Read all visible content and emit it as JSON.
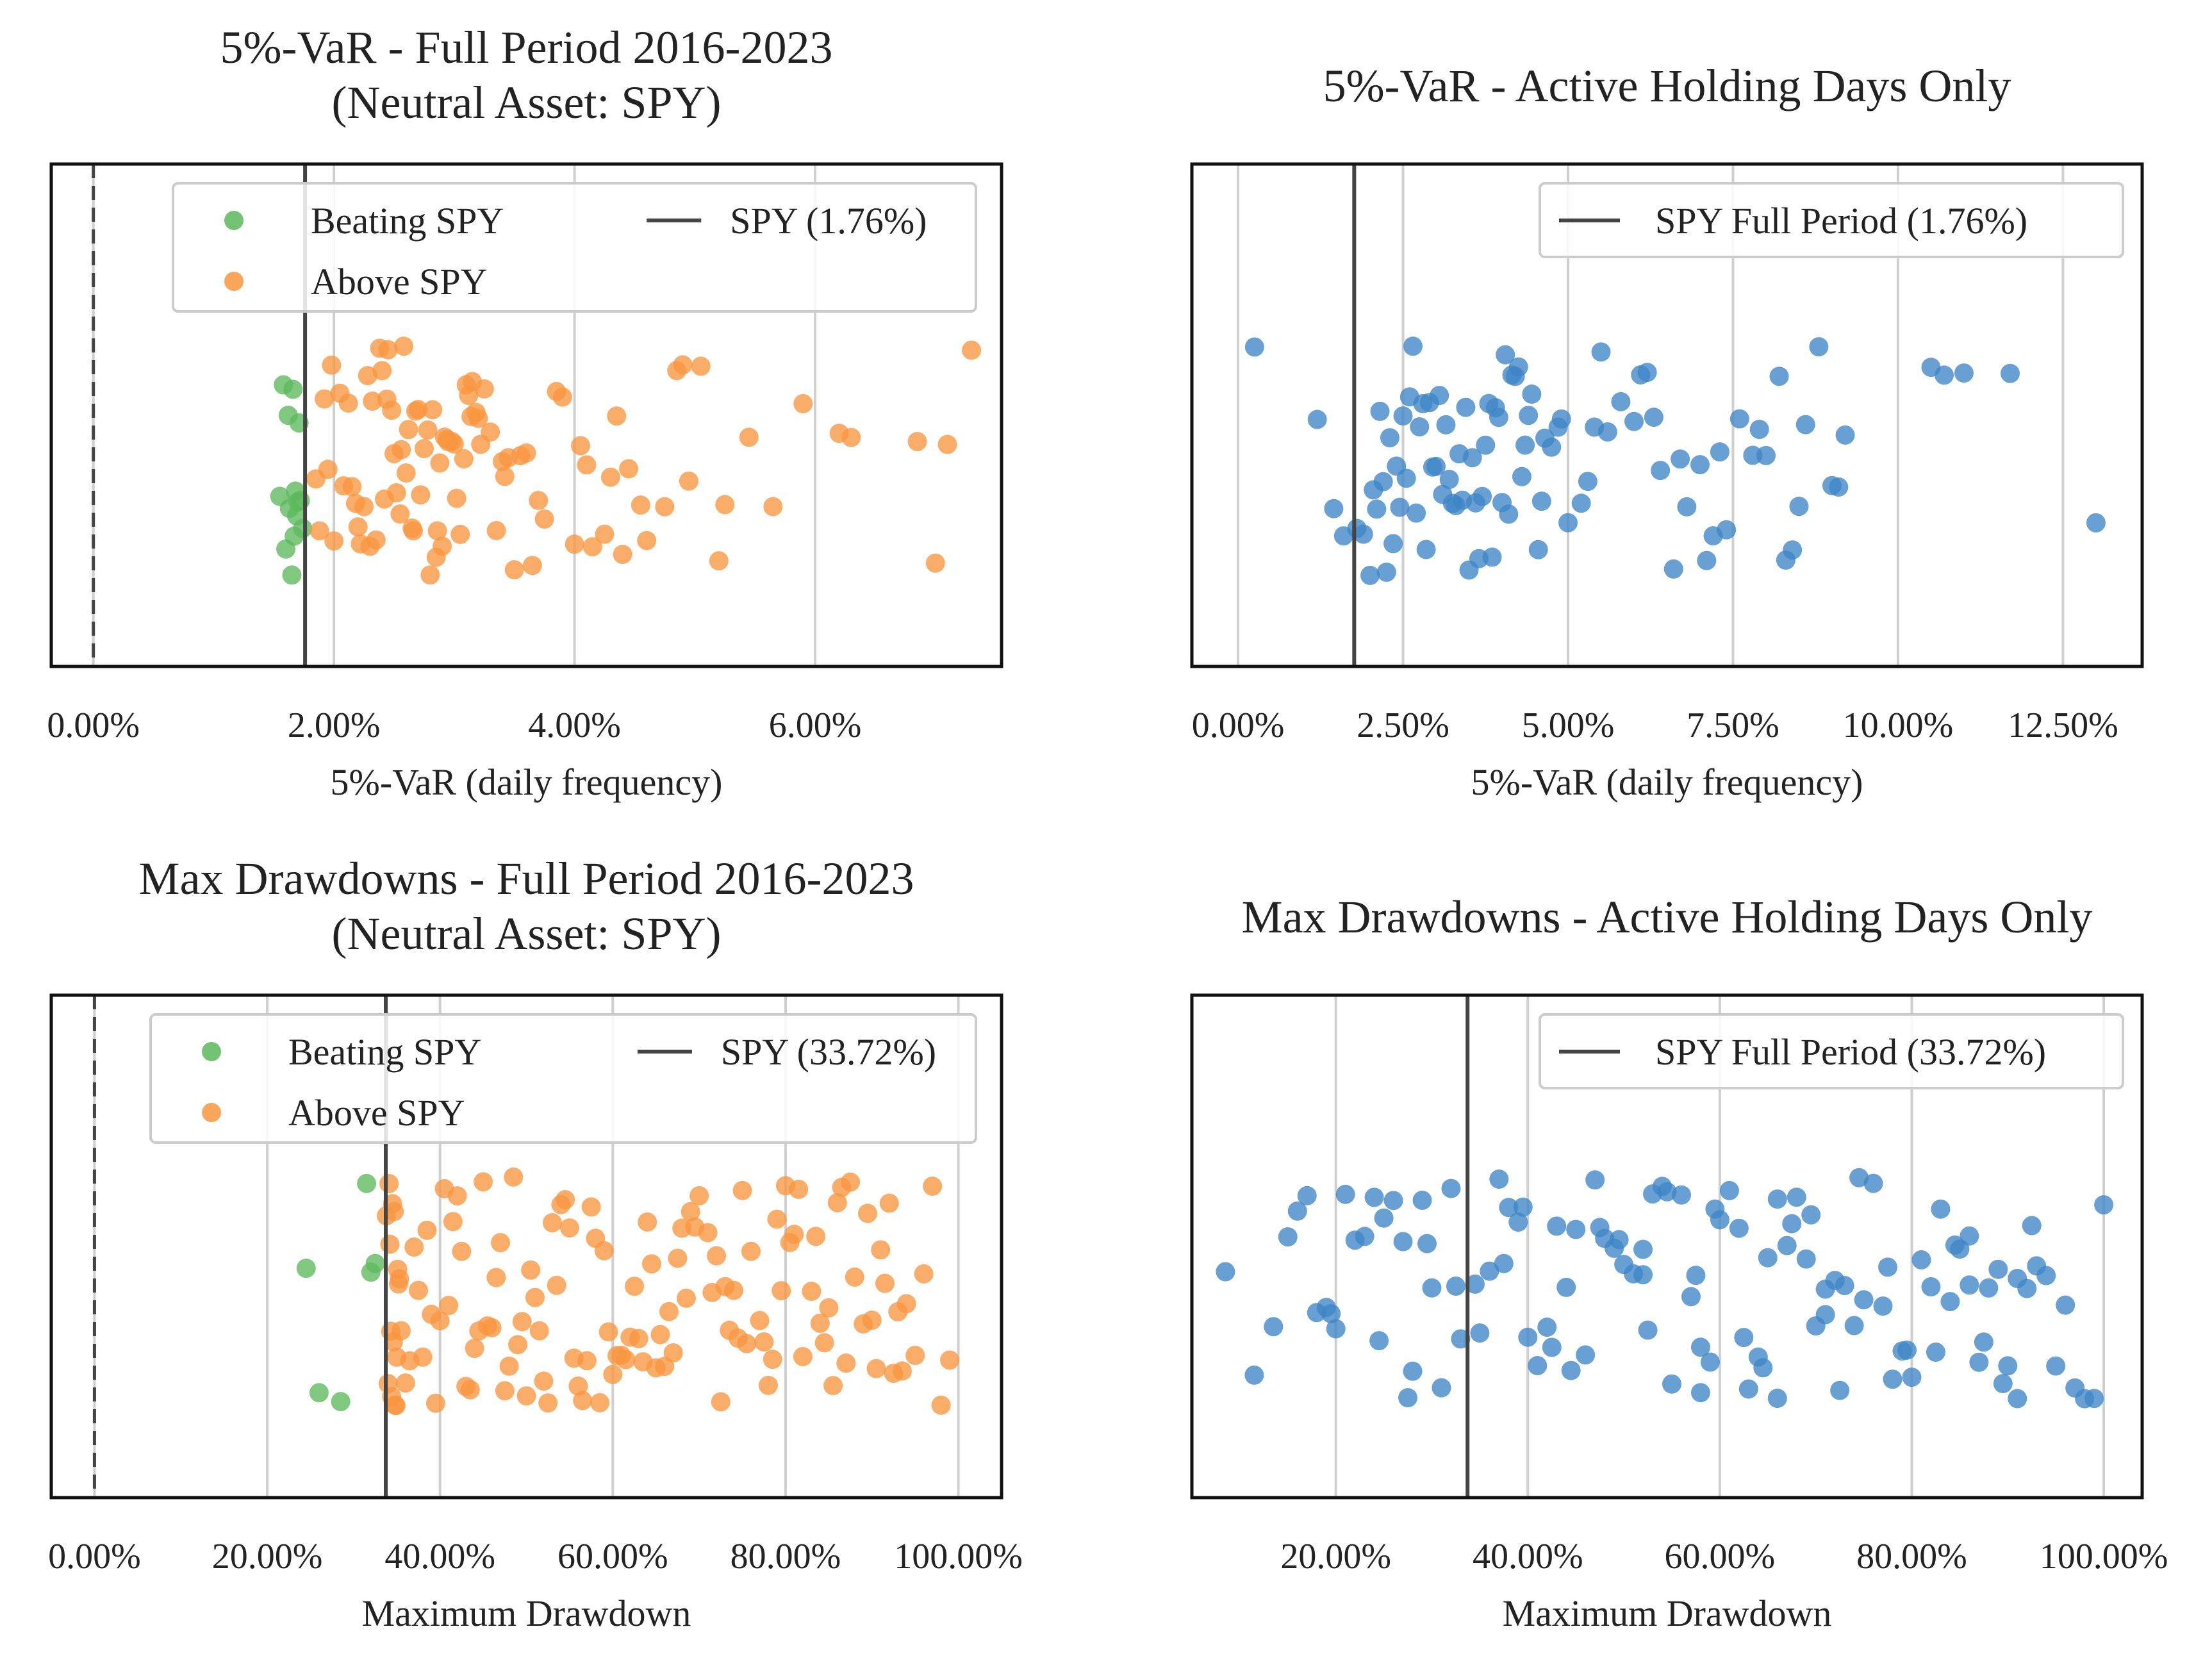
{
  "chart_data": [
    {
      "type": "scatter",
      "title": "5%-VaR - Full Period 2016-2023\n(Neutral Asset: SPY)",
      "xlabel": "5%-VaR (daily frequency)",
      "xlim": [
        -0.35,
        7.55
      ],
      "xticks": [
        0,
        2,
        4,
        6
      ],
      "xtick_labels": [
        "0.00%",
        "2.00%",
        "4.00%",
        "6.00%"
      ],
      "grid": "vertical",
      "zero_line": 0,
      "reference_line": {
        "x": 1.76,
        "label": "SPY (1.76%)"
      },
      "legend": {
        "placement": "top-right",
        "ncol": 2
      },
      "series": [
        {
          "name": "Beating SPY",
          "color": "#5cb85c",
          "x": [
            1.55,
            1.62,
            1.68,
            1.65,
            1.7,
            1.72,
            1.58,
            1.6,
            1.63,
            1.67,
            1.69,
            1.71,
            1.74,
            1.66
          ]
        },
        {
          "name": "Above SPY",
          "color": "#f8963f",
          "x": [
            1.85,
            1.92,
            2.05,
            2.2,
            2.3,
            2.35,
            2.4,
            2.5,
            2.55,
            2.62,
            2.7,
            2.78,
            2.85,
            2.9,
            2.95,
            3.0,
            3.05,
            3.1,
            3.15,
            3.2,
            3.3,
            3.4,
            3.5,
            3.6,
            3.75,
            3.9,
            4.05,
            4.15,
            4.25,
            4.35,
            4.45,
            4.6,
            4.75,
            4.85,
            4.95,
            5.05,
            5.25,
            5.45,
            5.65,
            5.9,
            6.2,
            6.3,
            6.85,
            7.0,
            7.1,
            7.3,
            2.12,
            2.28,
            2.42,
            2.58,
            2.68,
            2.82,
            2.98,
            3.12,
            3.35,
            3.55,
            1.95,
            2.0,
            2.15,
            2.25,
            2.45,
            2.6,
            2.75,
            2.88,
            3.02,
            3.18,
            3.45,
            3.65,
            3.85,
            4.1,
            4.4,
            2.08,
            2.38,
            2.52,
            2.72,
            2.92,
            1.88,
            2.18,
            2.48,
            2.65,
            2.8,
            3.08,
            3.25,
            3.42,
            3.7,
            4.0,
            4.3,
            4.55,
            4.9,
            5.2,
            1.98,
            2.32,
            2.56,
            2.86,
            3.14,
            2.22,
            2.44,
            2.66,
            2.94,
            3.22
          ]
        }
      ]
    },
    {
      "type": "scatter",
      "title": "5%-VaR - Active Holding Days Only",
      "xlabel": "5%-VaR (daily frequency)",
      "xlim": [
        -0.7,
        13.7
      ],
      "xticks": [
        0,
        2.5,
        5,
        7.5,
        10,
        12.5
      ],
      "xtick_labels": [
        "0.00%",
        "2.50%",
        "5.00%",
        "7.50%",
        "10.00%",
        "12.50%"
      ],
      "grid": "vertical",
      "reference_line": {
        "x": 1.76,
        "label": "SPY Full Period (1.76%)"
      },
      "legend": {
        "placement": "top-right",
        "ncol": 1
      },
      "series": [
        {
          "name": "",
          "color": "#3d85c6",
          "x": [
            0.25,
            1.2,
            1.45,
            1.6,
            1.8,
            2.0,
            2.2,
            2.35,
            2.5,
            2.65,
            2.8,
            2.95,
            3.1,
            3.25,
            3.4,
            3.55,
            3.7,
            3.85,
            4.0,
            4.15,
            4.3,
            4.45,
            4.6,
            4.75,
            4.9,
            5.2,
            5.4,
            5.6,
            5.8,
            6.0,
            6.2,
            6.4,
            6.6,
            6.8,
            7.0,
            7.2,
            7.4,
            7.6,
            7.8,
            8.0,
            8.2,
            8.4,
            8.6,
            8.8,
            9.0,
            9.2,
            10.5,
            10.7,
            11.0,
            11.7,
            13.0,
            2.1,
            2.45,
            2.75,
            3.05,
            3.35,
            3.65,
            3.95,
            4.25,
            4.55,
            4.85,
            2.25,
            2.6,
            2.9,
            3.2,
            3.5,
            3.8,
            4.1,
            4.4,
            1.9,
            2.15,
            2.4,
            2.7,
            3.0,
            3.3,
            3.6,
            3.9,
            4.2,
            5.0,
            5.5,
            6.1,
            6.7,
            7.3,
            7.9,
            8.5,
            2.05,
            2.55,
            3.15,
            3.75,
            4.35,
            5.3,
            6.3,
            7.1,
            8.3,
            9.1,
            2.3,
            2.85,
            3.45,
            4.05,
            4.65
          ]
        }
      ]
    },
    {
      "type": "scatter",
      "title": "Max Drawdowns - Full Period 2016-2023\n(Neutral Asset: SPY)",
      "xlabel": "Maximum Drawdown",
      "xlim": [
        -5,
        105
      ],
      "xticks": [
        0,
        20,
        40,
        60,
        80,
        100
      ],
      "xtick_labels": [
        "0.00%",
        "20.00%",
        "40.00%",
        "60.00%",
        "80.00%",
        "100.00%"
      ],
      "grid": "vertical",
      "zero_line": 0,
      "reference_line": {
        "x": 33.72,
        "label": "SPY (33.72%)"
      },
      "legend": {
        "placement": "top-right",
        "ncol": 2
      },
      "series": [
        {
          "name": "Beating SPY",
          "color": "#5cb85c",
          "x": [
            24.5,
            26.0,
            28.5,
            31.5,
            32.0,
            32.5
          ]
        },
        {
          "name": "Above SPY",
          "color": "#f8963f",
          "x": [
            33.8,
            34.0,
            34.2,
            34.4,
            34.6,
            34.8,
            35.0,
            35.2,
            35.5,
            36.0,
            37.0,
            38.0,
            39.0,
            40.0,
            41.0,
            42.0,
            43.0,
            44.0,
            45.0,
            46.0,
            47.0,
            48.0,
            49.0,
            50.0,
            51.0,
            52.0,
            53.0,
            54.0,
            55.0,
            56.0,
            57.0,
            58.0,
            59.0,
            60.0,
            61.0,
            62.0,
            63.0,
            64.0,
            65.0,
            66.0,
            67.0,
            68.0,
            69.0,
            70.0,
            71.0,
            72.0,
            73.0,
            74.0,
            75.0,
            76.0,
            77.0,
            78.0,
            79.0,
            80.0,
            81.0,
            82.0,
            83.0,
            84.0,
            85.0,
            86.0,
            87.0,
            88.0,
            89.0,
            90.0,
            91.0,
            92.0,
            93.0,
            94.0,
            95.0,
            96.0,
            97.0,
            98.0,
            99.0,
            36.5,
            38.5,
            41.5,
            44.5,
            47.5,
            50.5,
            53.5,
            56.5,
            59.5,
            62.5,
            65.5,
            68.5,
            71.5,
            74.5,
            77.5,
            80.5,
            83.5,
            86.5,
            89.5,
            92.5,
            37.5,
            42.5,
            48.5,
            54.5,
            58.5,
            63.5,
            66.5,
            72.5,
            78.5,
            84.5,
            90.5,
            39.5,
            45.5,
            51.5,
            57.5,
            61.5,
            67.5,
            73.5,
            79.5,
            85.5,
            91.5,
            34.1,
            34.3,
            34.5,
            34.7,
            34.9,
            35.1,
            35.3,
            40.5,
            43.5,
            46.5,
            49.5,
            52.5,
            55.5,
            60.5,
            64.5,
            69.5,
            75.5,
            81.5,
            87.5,
            93.5
          ]
        }
      ]
    },
    {
      "type": "scatter",
      "title": "Max Drawdowns - Active Holding Days Only",
      "xlabel": "Maximum Drawdown",
      "xlim": [
        5,
        104
      ],
      "xticks": [
        20,
        40,
        60,
        80,
        100
      ],
      "xtick_labels": [
        "20.00%",
        "40.00%",
        "60.00%",
        "80.00%",
        "100.00%"
      ],
      "grid": "vertical",
      "reference_line": {
        "x": 33.72,
        "label": "SPY Full Period (33.72%)"
      },
      "legend": {
        "placement": "top-right",
        "ncol": 1
      },
      "series": [
        {
          "name": "",
          "color": "#3d85c6",
          "x": [
            8.5,
            11.5,
            13.5,
            15.0,
            16.0,
            17.0,
            18.0,
            19.0,
            20.0,
            21.0,
            22.0,
            23.0,
            24.0,
            25.0,
            26.0,
            27.0,
            28.0,
            29.0,
            30.0,
            31.0,
            32.0,
            33.0,
            35.0,
            36.0,
            37.0,
            38.0,
            39.0,
            40.0,
            41.0,
            42.0,
            43.0,
            44.0,
            45.0,
            46.0,
            47.0,
            48.0,
            49.0,
            50.0,
            51.0,
            52.0,
            53.0,
            54.0,
            55.0,
            56.0,
            57.0,
            58.0,
            59.0,
            60.0,
            61.0,
            62.0,
            63.0,
            64.0,
            65.0,
            66.0,
            67.0,
            68.0,
            69.0,
            70.0,
            71.0,
            72.0,
            73.0,
            74.0,
            75.0,
            76.0,
            77.0,
            78.0,
            79.0,
            80.0,
            81.0,
            82.0,
            83.0,
            84.0,
            85.0,
            86.0,
            87.0,
            88.0,
            89.0,
            90.0,
            91.0,
            92.0,
            93.0,
            94.0,
            95.0,
            96.0,
            97.0,
            98.0,
            99.0,
            100.0,
            19.5,
            24.5,
            29.5,
            34.5,
            39.5,
            44.5,
            49.5,
            54.5,
            59.5,
            64.5,
            69.5,
            74.5,
            79.5,
            84.5,
            89.5,
            92.5,
            27.5,
            37.5,
            47.5,
            57.5,
            67.5,
            77.5,
            87.5,
            32.5,
            42.5,
            52.5,
            62.5,
            72.5,
            82.5,
            52.0,
            58.0,
            66.0,
            71.0,
            86.0,
            91.0
          ]
        }
      ]
    }
  ]
}
